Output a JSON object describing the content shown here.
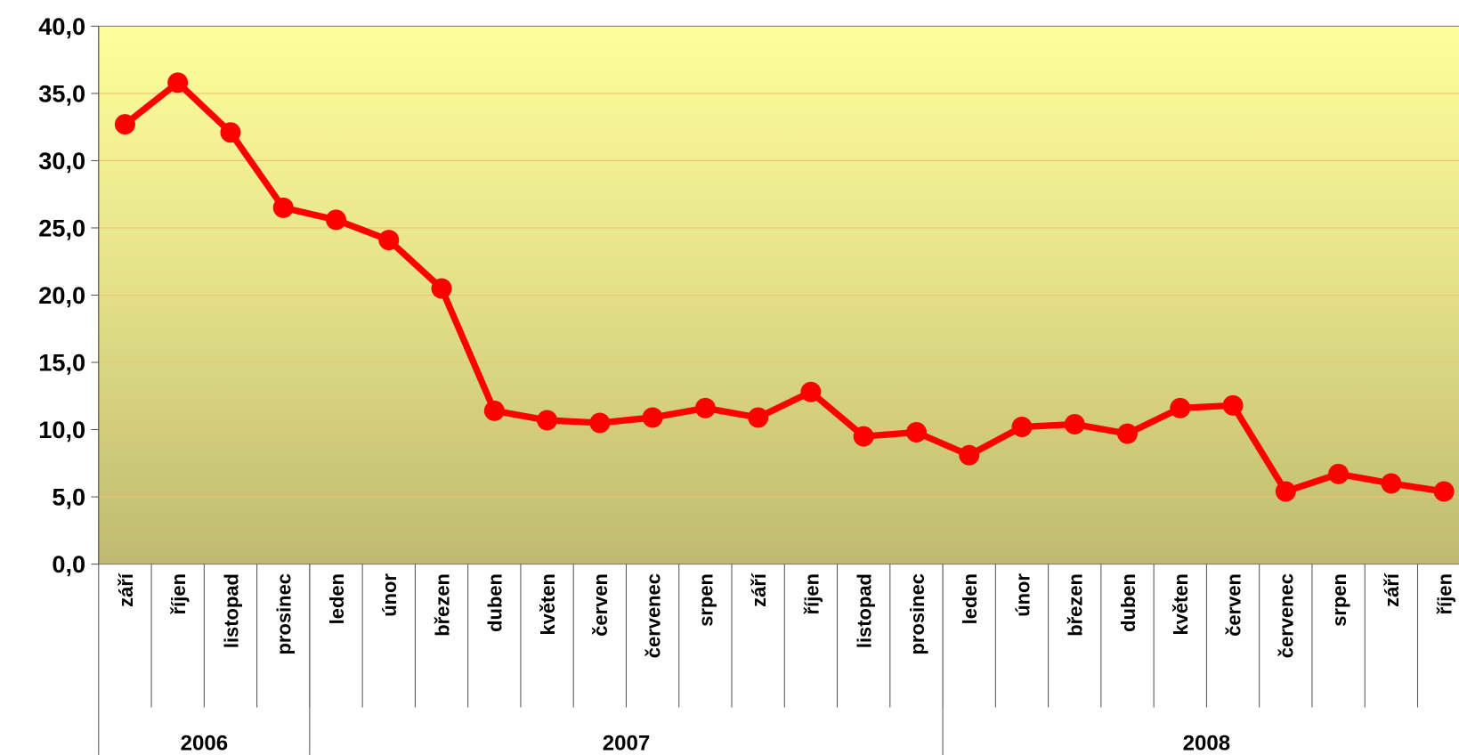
{
  "chart_data": {
    "type": "line",
    "categories": [
      "září",
      "říjen",
      "listopad",
      "prosinec",
      "leden",
      "únor",
      "březen",
      "duben",
      "květen",
      "červen",
      "červenec",
      "srpen",
      "září",
      "říjen",
      "listopad",
      "prosinec",
      "leden",
      "únor",
      "březen",
      "duben",
      "květen",
      "červen",
      "červenec",
      "srpen",
      "září",
      "říjen"
    ],
    "group_labels": [
      "2006",
      "2007",
      "2008"
    ],
    "group_sizes": [
      4,
      12,
      10
    ],
    "series": [
      {
        "color": "#ff0000",
        "values": [
          32.7,
          35.8,
          32.1,
          26.5,
          25.6,
          24.1,
          20.5,
          11.4,
          10.7,
          10.5,
          10.9,
          11.6,
          10.9,
          12.8,
          9.5,
          9.8,
          8.1,
          10.2,
          10.4,
          9.7,
          11.6,
          11.8,
          5.4,
          6.7,
          6.0,
          5.4
        ]
      }
    ],
    "ylim": [
      0,
      40
    ],
    "yticks": [
      {
        "value": 0,
        "label": "0,0"
      },
      {
        "value": 5,
        "label": "5,0"
      },
      {
        "value": 10,
        "label": "10,0"
      },
      {
        "value": 15,
        "label": "15,0"
      },
      {
        "value": 20,
        "label": "20,0"
      },
      {
        "value": 25,
        "label": "25,0"
      },
      {
        "value": 30,
        "label": "30,0"
      },
      {
        "value": 35,
        "label": "35,0"
      },
      {
        "value": 40,
        "label": "40,0"
      }
    ],
    "grid": true
  }
}
